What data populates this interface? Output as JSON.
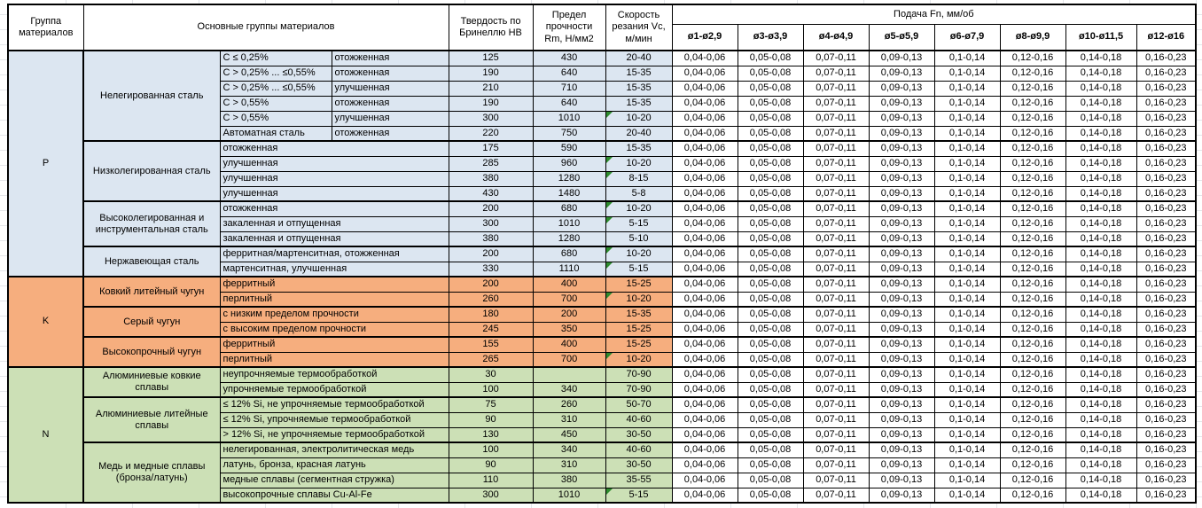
{
  "header": {
    "col_group": "Группа материалов",
    "col_main": "Основные группы материалов",
    "col_hb": "Твердость по Бринеллю HB",
    "col_rm": "Предел прочности Rm, Н/мм2",
    "col_vc": "Скорость резания Vc, м/мин",
    "feed_title": "Подача Fn, мм/об",
    "feed_cols": [
      "ø1-ø2,9",
      "ø3-ø3,9",
      "ø4-ø4,9",
      "ø5-ø5,9",
      "ø6-ø7,9",
      "ø8-ø9,9",
      "ø10-ø11,5",
      "ø12-ø16"
    ]
  },
  "feed_values": [
    "0,04-0,06",
    "0,05-0,08",
    "0,07-0,11",
    "0,09-0,13",
    "0,1-0,14",
    "0,12-0,16",
    "0,14-0,18",
    "0,16-0,23"
  ],
  "colors": {
    "flag": "#2E8B2E",
    "border": "#000000",
    "group_p": "#DCE6F1",
    "group_k": "#F6AE7E",
    "group_n": "#CCE0B6"
  },
  "groups": [
    {
      "letter": "P",
      "color": "#DCE6F1",
      "subgroups": [
        {
          "name": "Нелегированная сталь",
          "rows": [
            {
              "c1": "С ≤ 0,25%",
              "c2": "отожженная",
              "hb": "125",
              "rm": "430",
              "vc": "20-40",
              "flag": false
            },
            {
              "c1": "С > 0,25% ... ≤0,55%",
              "c2": "отожженная",
              "hb": "190",
              "rm": "640",
              "vc": "15-35",
              "flag": false
            },
            {
              "c1": "С > 0,25% ... ≤0,55%",
              "c2": "улучшенная",
              "hb": "210",
              "rm": "710",
              "vc": "15-35",
              "flag": false
            },
            {
              "c1": "С > 0,55%",
              "c2": "отожженная",
              "hb": "190",
              "rm": "640",
              "vc": "15-35",
              "flag": false
            },
            {
              "c1": "С > 0,55%",
              "c2": "улучшенная",
              "hb": "300",
              "rm": "1010",
              "vc": "10-20",
              "flag": true
            },
            {
              "c1": "Автоматная сталь",
              "c2": "отожженная",
              "hb": "220",
              "rm": "750",
              "vc": "20-40",
              "flag": false
            }
          ]
        },
        {
          "name": "Низколегированная сталь",
          "rows": [
            {
              "c1": "отожженная",
              "c2": null,
              "hb": "175",
              "rm": "590",
              "vc": "15-35",
              "flag": false
            },
            {
              "c1": "улучшенная",
              "c2": null,
              "hb": "285",
              "rm": "960",
              "vc": "10-20",
              "flag": true
            },
            {
              "c1": "улучшенная",
              "c2": null,
              "hb": "380",
              "rm": "1280",
              "vc": "8-15",
              "flag": true
            },
            {
              "c1": "улучшенная",
              "c2": null,
              "hb": "430",
              "rm": "1480",
              "vc": "5-8",
              "flag": false
            }
          ]
        },
        {
          "name": "Высоколегированная и инструментальная сталь",
          "rows": [
            {
              "c1": "отожженная",
              "c2": null,
              "hb": "200",
              "rm": "680",
              "vc": "10-20",
              "flag": true
            },
            {
              "c1": "закаленная и отпущенная",
              "c2": null,
              "hb": "300",
              "rm": "1010",
              "vc": "5-15",
              "flag": true
            },
            {
              "c1": "закаленная и отпущенная",
              "c2": null,
              "hb": "380",
              "rm": "1280",
              "vc": "5-10",
              "flag": false
            }
          ]
        },
        {
          "name": "Нержавеющая сталь",
          "rows": [
            {
              "c1": "ферритная/мартенситная, отожженная",
              "c2": null,
              "hb": "200",
              "rm": "680",
              "vc": "10-20",
              "flag": true
            },
            {
              "c1": "мартенситная, улучшенная",
              "c2": null,
              "hb": "330",
              "rm": "1110",
              "vc": "5-15",
              "flag": true
            }
          ]
        }
      ]
    },
    {
      "letter": "K",
      "color": "#F6AE7E",
      "subgroups": [
        {
          "name": "Ковкий литейный чугун",
          "rows": [
            {
              "c1": "ферритный",
              "c2": null,
              "hb": "200",
              "rm": "400",
              "vc": "15-25",
              "flag": false
            },
            {
              "c1": "перлитный",
              "c2": null,
              "hb": "260",
              "rm": "700",
              "vc": "10-20",
              "flag": true
            }
          ]
        },
        {
          "name": "Серый чугун",
          "rows": [
            {
              "c1": "с низким пределом прочности",
              "c2": null,
              "hb": "180",
              "rm": "200",
              "vc": "15-35",
              "flag": false
            },
            {
              "c1": "с высоким пределом прочности",
              "c2": null,
              "hb": "245",
              "rm": "350",
              "vc": "15-25",
              "flag": false
            }
          ]
        },
        {
          "name": "Высокопрочный чугун",
          "rows": [
            {
              "c1": "ферритный",
              "c2": null,
              "hb": "155",
              "rm": "400",
              "vc": "15-25",
              "flag": false
            },
            {
              "c1": "перлитный",
              "c2": null,
              "hb": "265",
              "rm": "700",
              "vc": "10-20",
              "flag": true
            }
          ]
        }
      ]
    },
    {
      "letter": "N",
      "color": "#CCE0B6",
      "subgroups": [
        {
          "name": "Алюминиевые ковкие сплавы",
          "rows": [
            {
              "c1": "неупрочняемые термообработкой",
              "c2": null,
              "hb": "30",
              "rm": "",
              "vc": "70-90",
              "flag": false
            },
            {
              "c1": "упрочняемые термообработкой",
              "c2": null,
              "hb": "100",
              "rm": "340",
              "vc": "70-90",
              "flag": false
            }
          ]
        },
        {
          "name": "Алюминиевые литейные сплавы",
          "rows": [
            {
              "c1": "≤ 12% Si, не упрочняемые термообработкой",
              "c2": null,
              "hb": "75",
              "rm": "260",
              "vc": "50-70",
              "flag": false
            },
            {
              "c1": "≤ 12% Si, упрочняемые термообработкой",
              "c2": null,
              "hb": "90",
              "rm": "310",
              "vc": "40-60",
              "flag": false
            },
            {
              "c1": "> 12% Si, не упрочняемые термообработкой",
              "c2": null,
              "hb": "130",
              "rm": "450",
              "vc": "30-50",
              "flag": false
            }
          ]
        },
        {
          "name": "Медь и медные сплавы (бронза/латунь)",
          "rows": [
            {
              "c1": "нелегированная, электролитическая медь",
              "c2": null,
              "hb": "100",
              "rm": "340",
              "vc": "40-60",
              "flag": false
            },
            {
              "c1": "латунь, бронза, красная латунь",
              "c2": null,
              "hb": "90",
              "rm": "310",
              "vc": "30-50",
              "flag": false
            },
            {
              "c1": "медные сплавы (сегментная стружка)",
              "c2": null,
              "hb": "110",
              "rm": "380",
              "vc": "35-55",
              "flag": false
            },
            {
              "c1": "высокопрочные сплавы Cu-Al-Fe",
              "c2": null,
              "hb": "300",
              "rm": "1010",
              "vc": "5-15",
              "flag": true
            }
          ]
        }
      ]
    }
  ]
}
